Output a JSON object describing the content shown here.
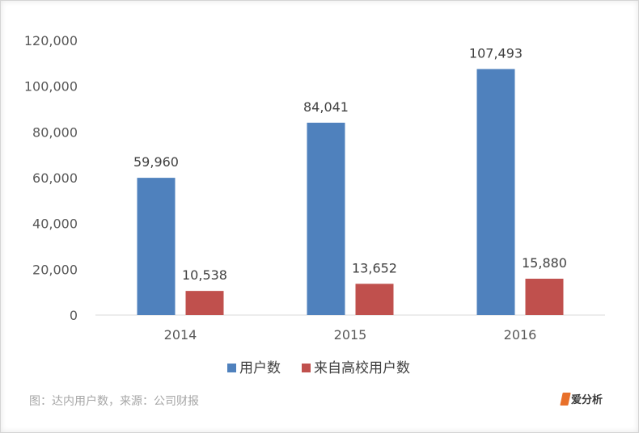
{
  "chart_data": {
    "type": "bar",
    "categories": [
      "2014",
      "2015",
      "2016"
    ],
    "series": [
      {
        "name": "用户数",
        "values": [
          59960,
          84041,
          107493
        ],
        "labels": [
          "59,960",
          "84,041",
          "107,493"
        ],
        "color": "#4f81bd"
      },
      {
        "name": "来自高校用户数",
        "values": [
          10538,
          13652,
          15880
        ],
        "labels": [
          "10,538",
          "13,652",
          "15,880"
        ],
        "color": "#c0504d"
      }
    ],
    "ylim": [
      0,
      120000
    ],
    "yticks": [
      0,
      20000,
      40000,
      60000,
      80000,
      100000,
      120000
    ],
    "ytick_labels": [
      "0",
      "20,000",
      "40,000",
      "60,000",
      "80,000",
      "100,000",
      "120,000"
    ],
    "grid": false,
    "legend_position": "bottom-center"
  },
  "caption": "图：达内用户数，来源：公司财报",
  "logo": {
    "text": "爱分析",
    "color": "#e8702a"
  }
}
